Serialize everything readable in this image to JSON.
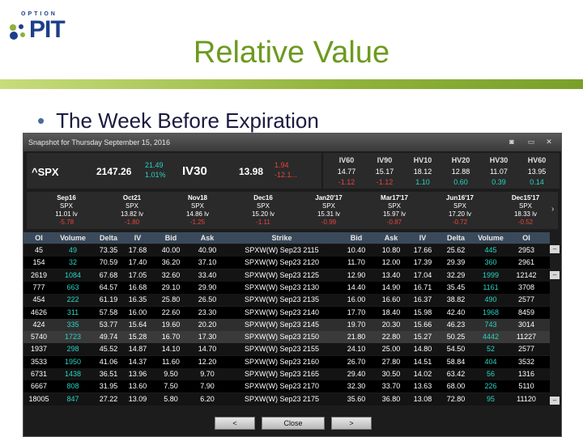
{
  "logo": {
    "top_text": "OPTION",
    "main_text": "PIT"
  },
  "slide": {
    "title": "Relative Value",
    "bullet": "The Week Before Expiration"
  },
  "window": {
    "title": "Snapshot for Thursday September 15, 2016",
    "camera_icon": "camera-icon",
    "minimize_icon": "minimize-icon",
    "close_icon": "close-icon"
  },
  "underlying": {
    "symbol": "^SPX",
    "price": "2147.26",
    "change_pts": "21.49",
    "change_pct": "1.01%",
    "iv_label": "IV30",
    "iv_value": "13.98",
    "iv_change": "1.94",
    "iv_change_pct": "-12.1..."
  },
  "vol_headers": [
    "IV60",
    "IV90",
    "HV10",
    "HV20",
    "HV30",
    "HV60"
  ],
  "vol_values": [
    "14.77",
    "15.17",
    "18.12",
    "12.88",
    "11.07",
    "13.95"
  ],
  "vol_changes": [
    "-1.12",
    "-1.12",
    "1.10",
    "0.60",
    "0.39",
    "0.14"
  ],
  "expirations": [
    {
      "name": "Sep16",
      "sym": "SPX",
      "iv": "11.01 lv",
      "chg": "-5.78"
    },
    {
      "name": "Oct21",
      "sym": "SPX",
      "iv": "13.82 lv",
      "chg": "-1.80"
    },
    {
      "name": "Nov18",
      "sym": "SPX",
      "iv": "14.86 lv",
      "chg": "-1.25"
    },
    {
      "name": "Dec16",
      "sym": "SPX",
      "iv": "15.20 lv",
      "chg": "-1.11"
    },
    {
      "name": "Jan20'17",
      "sym": "SPX",
      "iv": "15.31 lv",
      "chg": "-0.99"
    },
    {
      "name": "Mar17'17",
      "sym": "SPX",
      "iv": "15.97 lv",
      "chg": "-0.87"
    },
    {
      "name": "Jun16'17",
      "sym": "SPX",
      "iv": "17.20 lv",
      "chg": "-0.72"
    },
    {
      "name": "Dec15'17",
      "sym": "SPX",
      "iv": "18.33 lv",
      "chg": "-0.52"
    }
  ],
  "table": {
    "headers": [
      "OI",
      "Volume",
      "Delta",
      "IV",
      "Bid",
      "Ask",
      "Strike",
      "Bid",
      "Ask",
      "IV",
      "Delta",
      "Volume",
      "OI"
    ],
    "rows": [
      [
        "45",
        "49",
        "73.35",
        "17.68",
        "40.00",
        "40.90",
        "SPXW(W) Sep23 2115",
        "10.40",
        "10.80",
        "17.66",
        "25.62",
        "445",
        "2953"
      ],
      [
        "154",
        "32",
        "70.59",
        "17.40",
        "36.20",
        "37.10",
        "SPXW(W) Sep23 2120",
        "11.70",
        "12.00",
        "17.39",
        "29.39",
        "360",
        "2961"
      ],
      [
        "2619",
        "1084",
        "67.68",
        "17.05",
        "32.60",
        "33.40",
        "SPXW(W) Sep23 2125",
        "12.90",
        "13.40",
        "17.04",
        "32.29",
        "1999",
        "12142"
      ],
      [
        "777",
        "663",
        "64.57",
        "16.68",
        "29.10",
        "29.90",
        "SPXW(W) Sep23 2130",
        "14.40",
        "14.90",
        "16.71",
        "35.45",
        "1161",
        "3708"
      ],
      [
        "454",
        "222",
        "61.19",
        "16.35",
        "25.80",
        "26.50",
        "SPXW(W) Sep23 2135",
        "16.00",
        "16.60",
        "16.37",
        "38.82",
        "490",
        "2577"
      ],
      [
        "4626",
        "311",
        "57.58",
        "16.00",
        "22.60",
        "23.30",
        "SPXW(W) Sep23 2140",
        "17.70",
        "18.40",
        "15.98",
        "42.40",
        "1968",
        "8459"
      ],
      [
        "424",
        "335",
        "53.77",
        "15.64",
        "19.60",
        "20.20",
        "SPXW(W) Sep23 2145",
        "19.70",
        "20.30",
        "15.66",
        "46.23",
        "743",
        "3014"
      ],
      [
        "5740",
        "1723",
        "49.74",
        "15.28",
        "16.70",
        "17.30",
        "SPXW(W) Sep23 2150",
        "21.80",
        "22.80",
        "15.27",
        "50.25",
        "4442",
        "11227"
      ],
      [
        "1937",
        "298",
        "45.52",
        "14.87",
        "14.10",
        "14.70",
        "SPXW(W) Sep23 2155",
        "24.10",
        "25.00",
        "14.80",
        "54.50",
        "52",
        "2577"
      ],
      [
        "3533",
        "1950",
        "41.06",
        "14.37",
        "11.60",
        "12.20",
        "SPXW(W) Sep23 2160",
        "26.70",
        "27.80",
        "14.51",
        "58.84",
        "404",
        "3532"
      ],
      [
        "6731",
        "1438",
        "36.51",
        "13.96",
        "9.50",
        "9.70",
        "SPXW(W) Sep23 2165",
        "29.40",
        "30.50",
        "14.02",
        "63.42",
        "56",
        "1316"
      ],
      [
        "6667",
        "808",
        "31.95",
        "13.60",
        "7.50",
        "7.90",
        "SPXW(W) Sep23 2170",
        "32.30",
        "33.70",
        "13.63",
        "68.00",
        "226",
        "5110"
      ],
      [
        "18005",
        "847",
        "27.22",
        "13.09",
        "5.80",
        "6.20",
        "SPXW(W) Sep23 2175",
        "35.60",
        "36.80",
        "13.08",
        "72.80",
        "95",
        "11120"
      ]
    ]
  },
  "buttons": {
    "prev": "<",
    "close": "Close",
    "next": ">"
  },
  "colors": {
    "positive": "#28d4c4",
    "negative": "#e8453c",
    "title_green": "#6c9a1e"
  }
}
